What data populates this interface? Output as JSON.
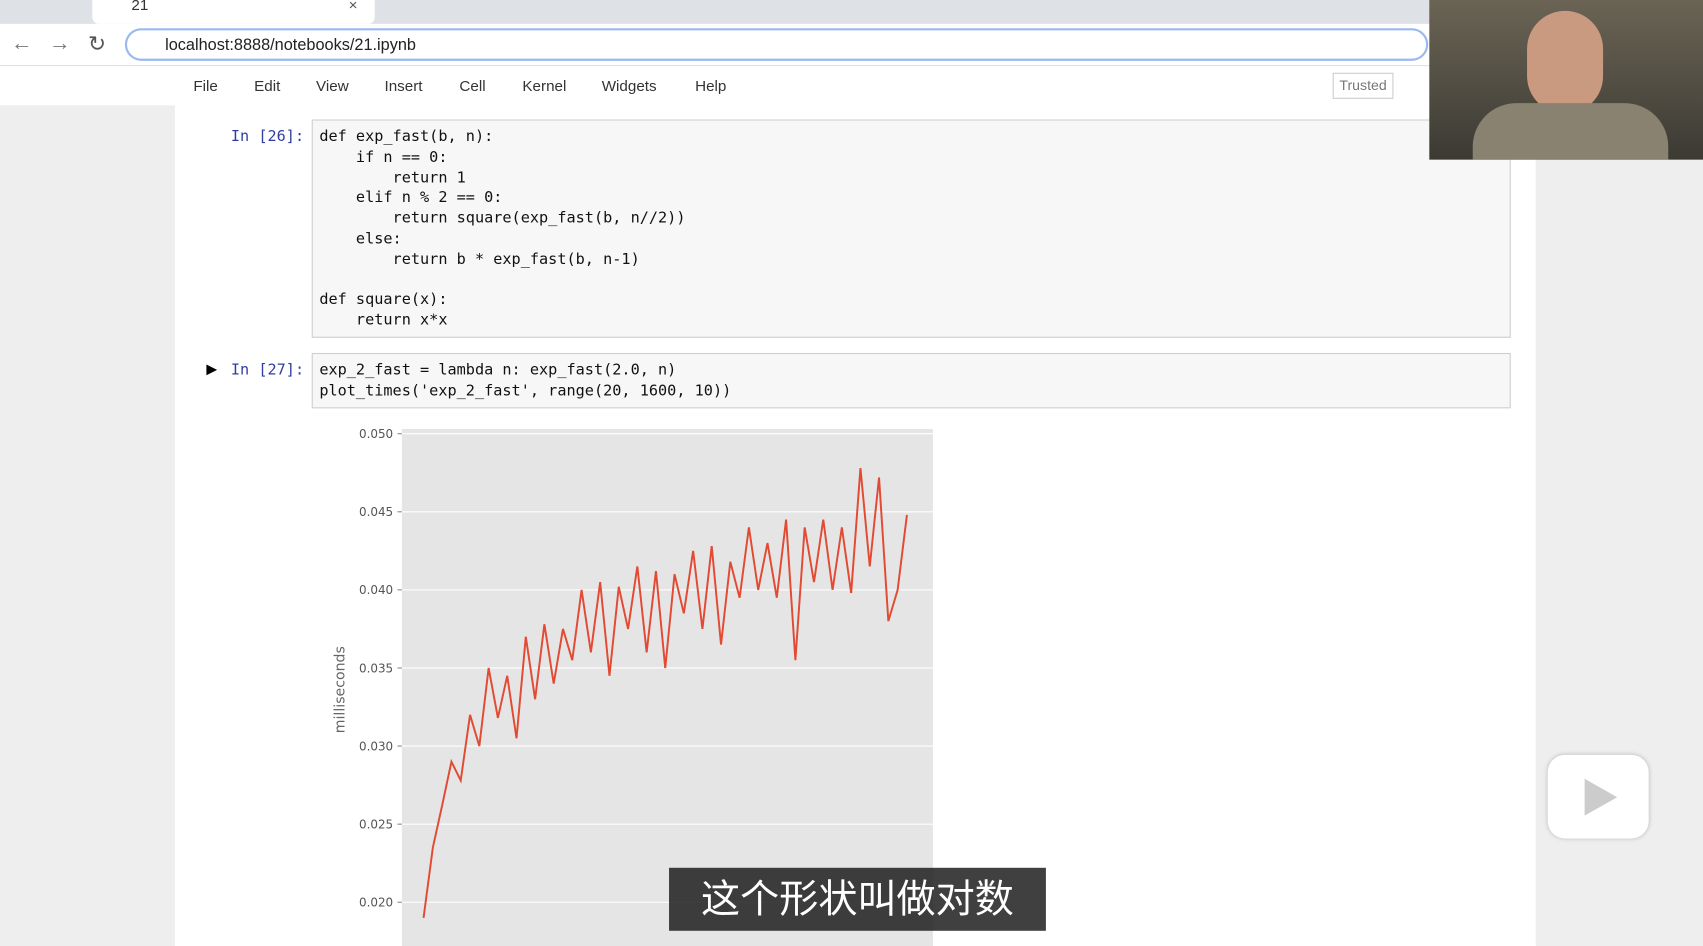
{
  "browser": {
    "tab_title": "21",
    "url": "localhost:8888/notebooks/21.ipynb"
  },
  "menu": [
    "File",
    "Edit",
    "View",
    "Insert",
    "Cell",
    "Kernel",
    "Widgets",
    "Help"
  ],
  "trusted": "Trusted",
  "cells": [
    {
      "prompt": "In [26]:",
      "code": "def exp_fast(b, n):\n    if n == 0:\n        return 1\n    elif n % 2 == 0:\n        return square(exp_fast(b, n//2))\n    else:\n        return b * exp_fast(b, n-1)\n\ndef square(x):\n    return x*x"
    },
    {
      "prompt": "In [27]:",
      "code": "exp_2_fast = lambda n: exp_fast(2.0, n)\nplot_times('exp_2_fast', range(20, 1600, 10))"
    }
  ],
  "chart_data": {
    "type": "line",
    "ylabel": "milliseconds",
    "color": "#e24a33",
    "grid": true,
    "x": [
      20,
      50,
      80,
      110,
      140,
      170,
      200,
      230,
      260,
      290,
      320,
      350,
      380,
      410,
      440,
      470,
      500,
      530,
      560,
      590,
      620,
      650,
      680,
      710,
      740,
      770,
      800,
      830,
      860,
      890,
      920,
      950,
      980,
      1010,
      1040,
      1070,
      1100,
      1130,
      1160,
      1190,
      1220,
      1250,
      1280,
      1310,
      1340,
      1370,
      1400,
      1430,
      1460,
      1490,
      1520,
      1550,
      1580
    ],
    "values": [
      0.019,
      0.0235,
      0.0262,
      0.029,
      0.0278,
      0.032,
      0.03,
      0.035,
      0.0318,
      0.0345,
      0.0305,
      0.037,
      0.033,
      0.0378,
      0.034,
      0.0375,
      0.0355,
      0.04,
      0.036,
      0.0405,
      0.0345,
      0.0402,
      0.0375,
      0.0415,
      0.036,
      0.0412,
      0.035,
      0.041,
      0.0385,
      0.0425,
      0.0375,
      0.0428,
      0.0365,
      0.0418,
      0.0395,
      0.044,
      0.04,
      0.043,
      0.0395,
      0.0445,
      0.0355,
      0.044,
      0.0405,
      0.0445,
      0.04,
      0.044,
      0.0398,
      0.0478,
      0.0415,
      0.0472,
      0.038,
      0.04,
      0.0448
    ],
    "xlim": [
      -50,
      1664
    ],
    "ylim": [
      0.0172,
      0.0503
    ],
    "yticks": [
      {
        "value": 0.02,
        "label": "0.020"
      },
      0.025,
      {
        "value": 0.03,
        "label": "0.030"
      },
      0.035,
      {
        "value": 0.04,
        "label": "0.040"
      },
      0.045,
      {
        "value": 0.05,
        "label": "0.050"
      }
    ]
  },
  "subtitle": "这个形状叫做对数"
}
